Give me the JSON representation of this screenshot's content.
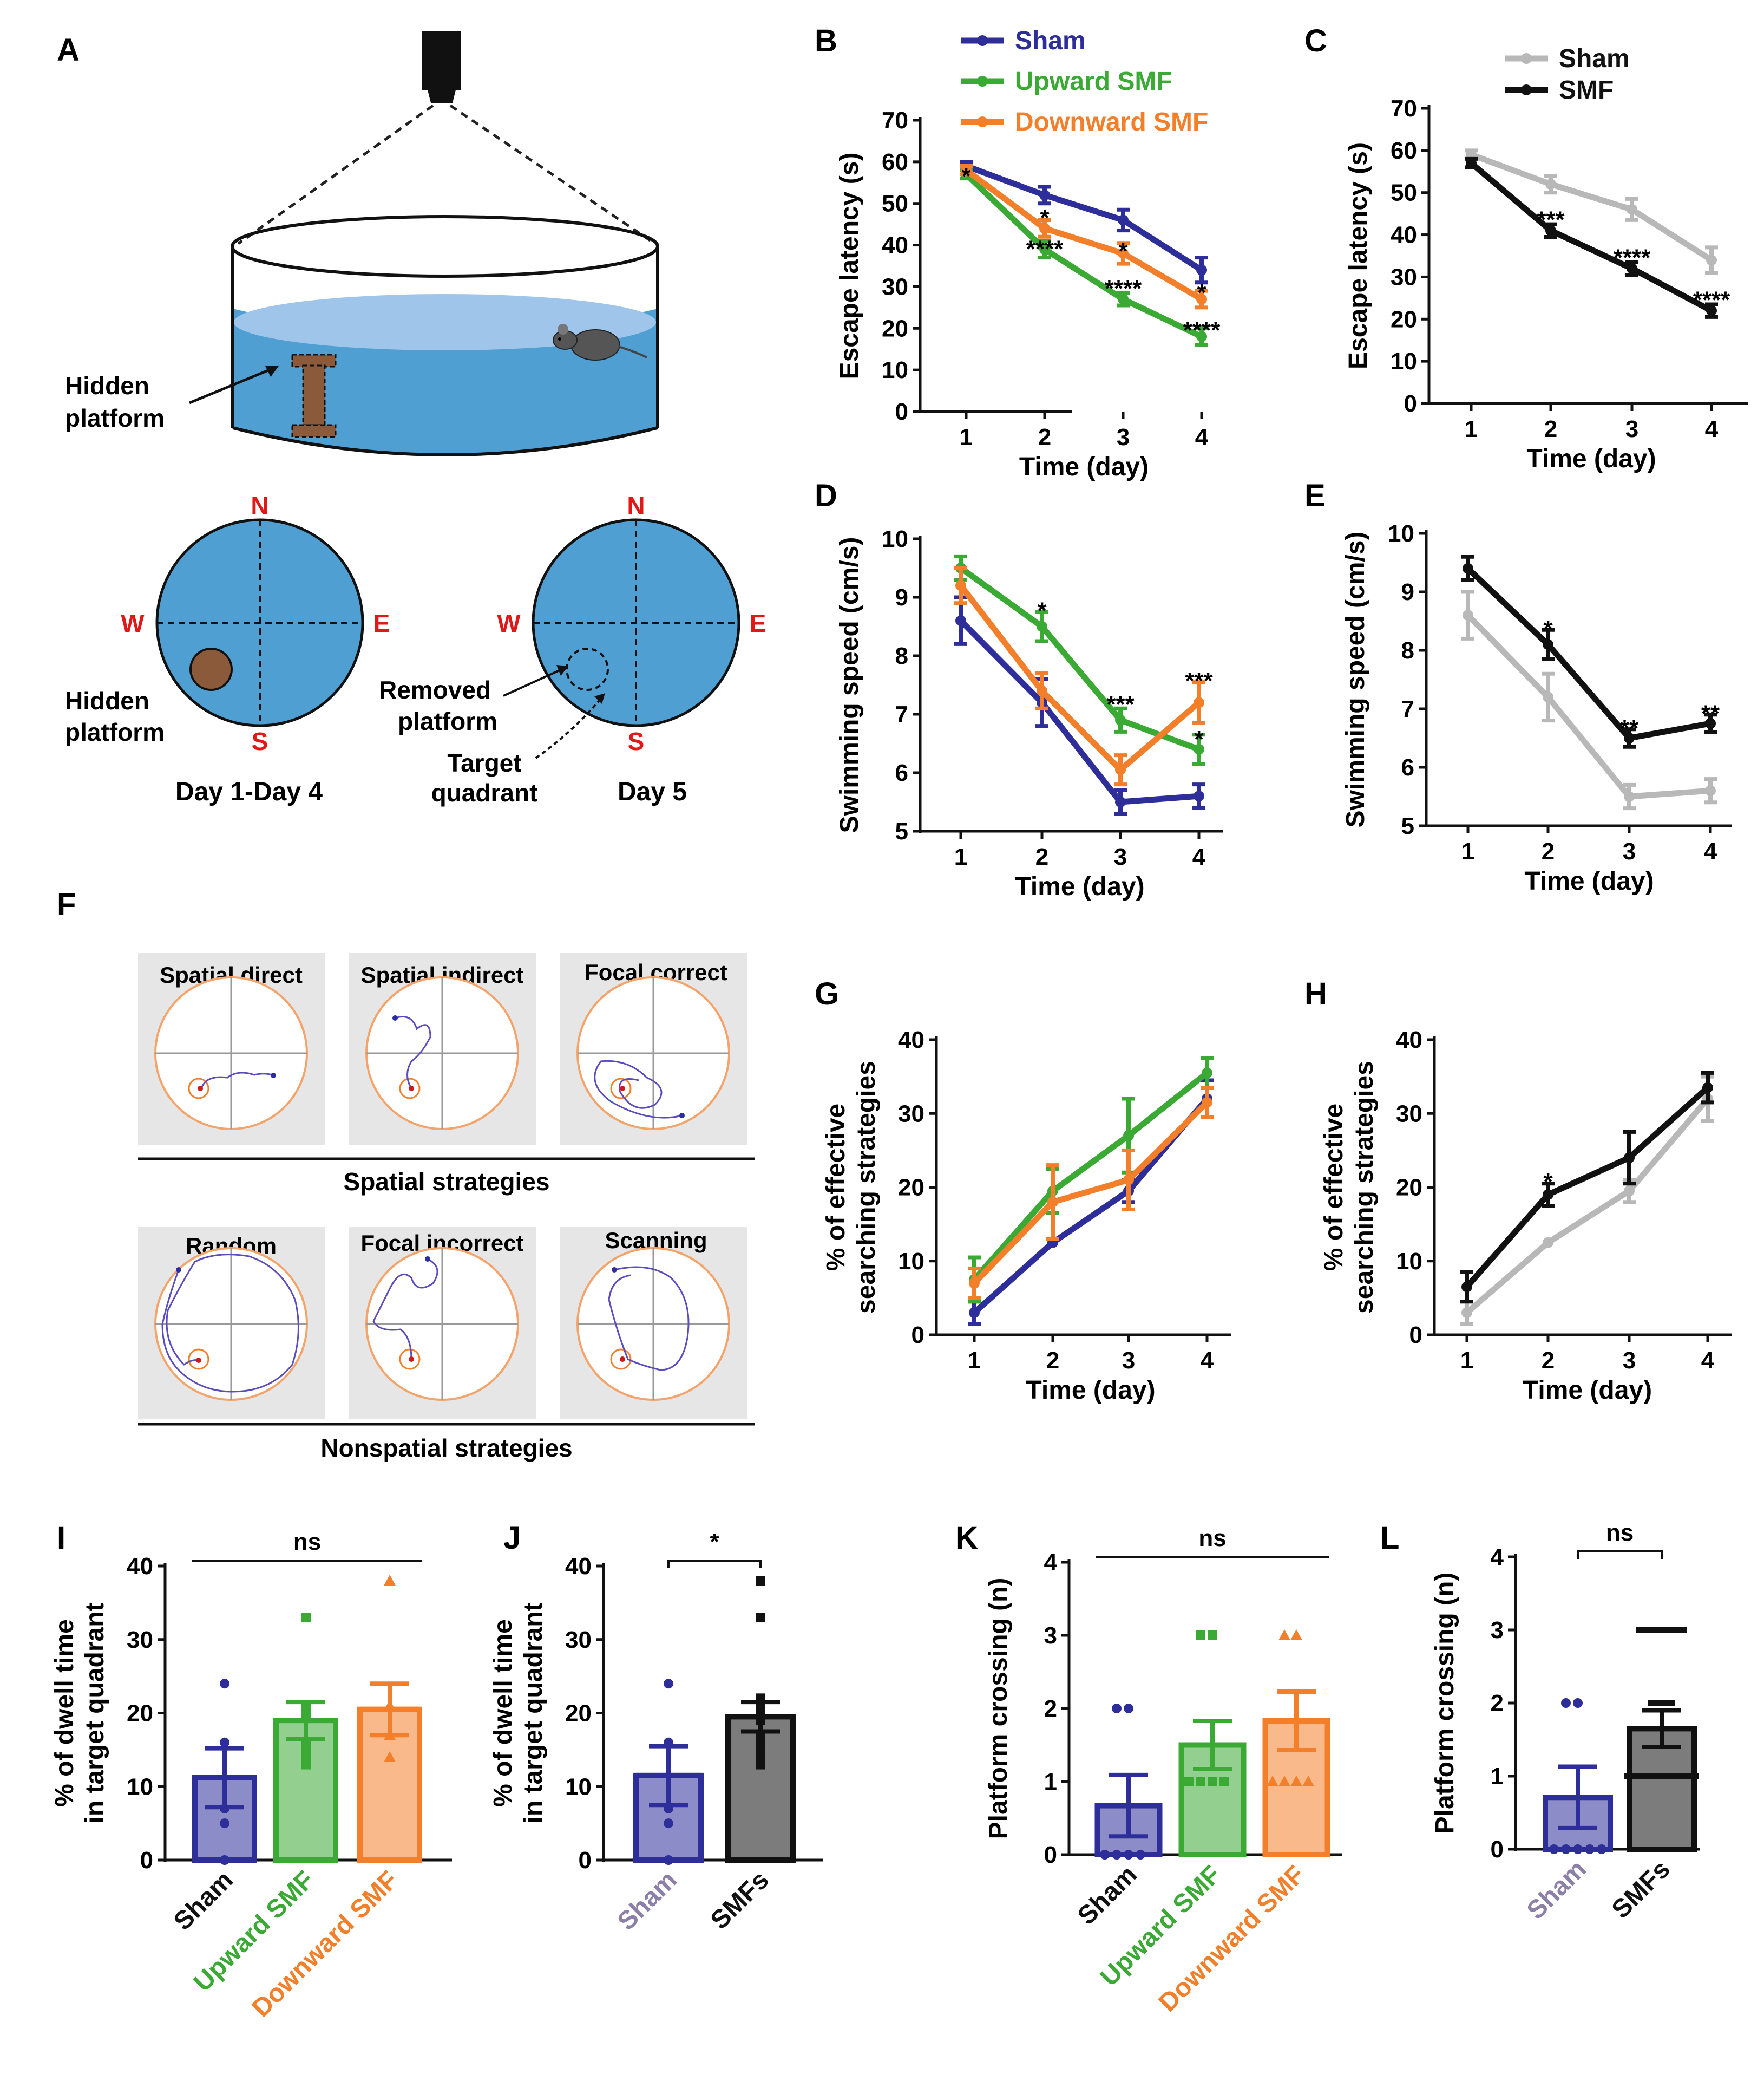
{
  "colors": {
    "sham": "#2e2e9a",
    "up": "#3aaa35",
    "down": "#f47f2a",
    "smf": "#111111",
    "shamGray": "#b8b8b8",
    "water": "#5ea7d4",
    "compass": "#e01818"
  },
  "panelA": {
    "label": "A",
    "hidden_platform_line1": "Hidden",
    "hidden_platform_line2": "platform",
    "compass": {
      "n": "N",
      "s": "S",
      "w": "W",
      "e": "E"
    },
    "left_platform_line1": "Hidden",
    "left_platform_line2": "platform",
    "removed_line1": "Removed",
    "removed_line2": "platform",
    "target_line1": "Target",
    "target_line2": "quadrant",
    "caption_left": "Day 1-Day 4",
    "caption_right": "Day 5"
  },
  "panelF": {
    "label": "F",
    "spatial_titles": [
      "Spatial direct",
      "Spatial indirect",
      "Focal correct"
    ],
    "spatial_group": "Spatial strategies",
    "nonspatial_titles": [
      "Random",
      "Focal incorrect",
      "Scanning"
    ],
    "nonspatial_group": "Nonspatial strategies"
  },
  "chart_data": [
    {
      "id": "B",
      "type": "line",
      "xlabel": "Time (day)",
      "ylabel": "Escape latency (s)",
      "x": [
        1,
        2,
        3,
        4
      ],
      "ylim": [
        0,
        70
      ],
      "yticks": [
        0,
        10,
        20,
        30,
        40,
        50,
        60,
        70
      ],
      "legend": [
        "Sham",
        "Upward SMF",
        "Downward SMF"
      ],
      "series": [
        {
          "name": "Sham",
          "color": "sham",
          "values": [
            59,
            52,
            46,
            34
          ],
          "errors": [
            1,
            2,
            2.5,
            3
          ]
        },
        {
          "name": "Upward SMF",
          "color": "up",
          "values": [
            57,
            39,
            27,
            18
          ],
          "errors": [
            1,
            2,
            1.5,
            2
          ]
        },
        {
          "name": "Downward SMF",
          "color": "down",
          "values": [
            58,
            44,
            38,
            27
          ],
          "errors": [
            1,
            2,
            2.5,
            2
          ]
        }
      ],
      "annotations": [
        {
          "x": 1,
          "y": 57,
          "text": "*"
        },
        {
          "x": 2,
          "y": 47,
          "text": "*"
        },
        {
          "x": 2,
          "y": 39.5,
          "text": "****"
        },
        {
          "x": 3,
          "y": 39,
          "text": "*"
        },
        {
          "x": 3,
          "y": 30,
          "text": "****"
        },
        {
          "x": 4,
          "y": 29,
          "text": "*"
        },
        {
          "x": 4,
          "y": 20,
          "text": "****"
        }
      ]
    },
    {
      "id": "C",
      "type": "line",
      "xlabel": "Time (day)",
      "ylabel": "Escape latency (s)",
      "x": [
        1,
        2,
        3,
        4
      ],
      "ylim": [
        0,
        70
      ],
      "yticks": [
        0,
        10,
        20,
        30,
        40,
        50,
        60,
        70
      ],
      "legend": [
        "Sham",
        "SMF"
      ],
      "series": [
        {
          "name": "Sham",
          "color": "shamGray",
          "values": [
            59,
            52,
            46,
            34
          ],
          "errors": [
            1,
            2,
            2.5,
            3
          ]
        },
        {
          "name": "SMF",
          "color": "smf",
          "values": [
            57,
            41,
            32,
            22
          ],
          "errors": [
            1,
            1.5,
            1.5,
            1.5
          ]
        }
      ],
      "annotations": [
        {
          "x": 2,
          "y": 44,
          "text": "***"
        },
        {
          "x": 3,
          "y": 35,
          "text": "****"
        },
        {
          "x": 4,
          "y": 25,
          "text": "****"
        }
      ]
    },
    {
      "id": "D",
      "type": "line",
      "xlabel": "Time (day)",
      "ylabel": "Swimming speed (cm/s)",
      "x": [
        1,
        2,
        3,
        4
      ],
      "ylim": [
        5,
        10
      ],
      "yticks": [
        5,
        6,
        7,
        8,
        9,
        10
      ],
      "series": [
        {
          "name": "Sham",
          "color": "sham",
          "values": [
            8.6,
            7.2,
            5.5,
            5.6
          ],
          "errors": [
            0.4,
            0.4,
            0.2,
            0.2
          ]
        },
        {
          "name": "Upward SMF",
          "color": "up",
          "values": [
            9.5,
            8.5,
            6.9,
            6.4
          ],
          "errors": [
            0.2,
            0.25,
            0.2,
            0.25
          ]
        },
        {
          "name": "Downward SMF",
          "color": "down",
          "values": [
            9.2,
            7.4,
            6.05,
            7.2
          ],
          "errors": [
            0.3,
            0.3,
            0.25,
            0.35
          ]
        }
      ],
      "annotations": [
        {
          "x": 2,
          "y": 8.8,
          "text": "*"
        },
        {
          "x": 3,
          "y": 7.2,
          "text": "***"
        },
        {
          "x": 4,
          "y": 7.6,
          "text": "***"
        },
        {
          "x": 4,
          "y": 6.6,
          "text": "*"
        }
      ]
    },
    {
      "id": "E",
      "type": "line",
      "xlabel": "Time (day)",
      "ylabel": "Swimming speed (cm/s)",
      "x": [
        1,
        2,
        3,
        4
      ],
      "ylim": [
        5,
        10
      ],
      "yticks": [
        5,
        6,
        7,
        8,
        9,
        10
      ],
      "series": [
        {
          "name": "Sham",
          "color": "shamGray",
          "values": [
            8.6,
            7.2,
            5.5,
            5.6
          ],
          "errors": [
            0.4,
            0.4,
            0.2,
            0.2
          ]
        },
        {
          "name": "SMF",
          "color": "smf",
          "values": [
            9.4,
            8.1,
            6.5,
            6.75
          ],
          "errors": [
            0.2,
            0.25,
            0.15,
            0.15
          ]
        }
      ],
      "annotations": [
        {
          "x": 2,
          "y": 8.4,
          "text": "*"
        },
        {
          "x": 3,
          "y": 6.7,
          "text": "**"
        },
        {
          "x": 4,
          "y": 6.95,
          "text": "**"
        }
      ]
    },
    {
      "id": "G",
      "type": "line",
      "xlabel": "Time (day)",
      "ylabel": [
        "% of effective",
        "searching strategies"
      ],
      "x": [
        1,
        2,
        3,
        4
      ],
      "ylim": [
        0,
        40
      ],
      "yticks": [
        0,
        10,
        20,
        30,
        40
      ],
      "series": [
        {
          "name": "Sham",
          "color": "sham",
          "values": [
            3,
            12.5,
            19.5,
            32
          ],
          "errors": [
            1.5,
            0,
            1.5,
            2.5
          ]
        },
        {
          "name": "Upward SMF",
          "color": "up",
          "values": [
            7.5,
            19.5,
            27,
            35.5
          ],
          "errors": [
            3,
            3,
            5,
            2
          ]
        },
        {
          "name": "Downward SMF",
          "color": "down",
          "values": [
            7,
            18,
            21,
            31.5
          ],
          "errors": [
            2,
            5,
            4,
            2
          ]
        }
      ],
      "annotations": []
    },
    {
      "id": "H",
      "type": "line",
      "xlabel": "Time (day)",
      "ylabel": [
        "% of effective",
        "searching strategies"
      ],
      "x": [
        1,
        2,
        3,
        4
      ],
      "ylim": [
        0,
        40
      ],
      "yticks": [
        0,
        10,
        20,
        30,
        40
      ],
      "series": [
        {
          "name": "Sham",
          "color": "shamGray",
          "values": [
            3,
            12.5,
            19.5,
            32
          ],
          "errors": [
            1.5,
            0,
            1.5,
            3
          ]
        },
        {
          "name": "SMF",
          "color": "smf",
          "values": [
            6.5,
            19,
            24,
            33.5
          ],
          "errors": [
            2,
            1.5,
            3.5,
            2
          ]
        }
      ],
      "annotations": [
        {
          "x": 2,
          "y": 21,
          "text": "*"
        }
      ]
    },
    {
      "id": "I",
      "type": "bar",
      "ylabel": [
        "% of dwell time",
        "in target quadrant"
      ],
      "ylim": [
        0,
        40
      ],
      "yticks": [
        0,
        10,
        20,
        30,
        40
      ],
      "categories": [
        "Sham",
        "Upward SMF",
        "Downward SMF"
      ],
      "colors": [
        "sham",
        "up",
        "down"
      ],
      "values": [
        11.2,
        19,
        20.5
      ],
      "errors": [
        4,
        2.5,
        3.5
      ],
      "points": [
        [
          24,
          16,
          7,
          5,
          0
        ],
        [
          33,
          21,
          20,
          16,
          15,
          14,
          13
        ],
        [
          38,
          21,
          17,
          14
        ]
      ],
      "marker": [
        "circle",
        "square",
        "triangle"
      ],
      "significance": {
        "text": "ns",
        "from": 0,
        "to": 2
      }
    },
    {
      "id": "J",
      "type": "bar",
      "ylabel": [
        "% of dwell time",
        "in target quadrant"
      ],
      "ylim": [
        0,
        40
      ],
      "yticks": [
        0,
        10,
        20,
        30,
        40
      ],
      "categories": [
        "Sham",
        "SMFs"
      ],
      "colors": [
        "sham",
        "smf"
      ],
      "label_colors": [
        "#8c7fa8",
        "#111111"
      ],
      "values": [
        11.5,
        19.5
      ],
      "errors": [
        4,
        2
      ],
      "points": [
        [
          24,
          16,
          7,
          5,
          0
        ],
        [
          38,
          33,
          22,
          21,
          20,
          19,
          17,
          16,
          15,
          14,
          13
        ]
      ],
      "marker": [
        "circle",
        "square"
      ],
      "significance": {
        "text": "*",
        "from": 0,
        "to": 1
      }
    },
    {
      "id": "K",
      "type": "bar",
      "ylabel": "Platform crossing (n)",
      "ylim": [
        0,
        4
      ],
      "yticks": [
        0,
        1,
        2,
        3,
        4
      ],
      "categories": [
        "Sham",
        "Upward SMF",
        "Downward SMF"
      ],
      "colors": [
        "sham",
        "up",
        "down"
      ],
      "values": [
        0.67,
        1.5,
        1.83
      ],
      "errors": [
        0.42,
        0.33,
        0.4
      ],
      "points": [
        [
          2,
          2,
          0,
          0,
          0,
          0
        ],
        [
          3,
          3,
          1,
          1,
          1,
          1
        ],
        [
          3,
          3,
          1,
          1,
          1,
          1
        ]
      ],
      "marker": [
        "circle",
        "square",
        "triangle"
      ],
      "significance": {
        "text": "ns",
        "from": 0,
        "to": 2
      }
    },
    {
      "id": "L",
      "type": "bar",
      "ylabel": "Platform crossing (n)",
      "ylim": [
        0,
        4
      ],
      "yticks": [
        0,
        1,
        2,
        3,
        4
      ],
      "categories": [
        "Sham",
        "SMFs"
      ],
      "colors": [
        "sham",
        "smf"
      ],
      "label_colors": [
        "#8c7fa8",
        "#111111"
      ],
      "values": [
        0.71,
        1.65
      ],
      "errors": [
        0.42,
        0.25
      ],
      "points": [
        [
          2,
          2,
          0,
          0,
          0,
          0,
          0
        ],
        [
          3,
          3,
          3,
          2,
          1,
          1,
          1,
          1,
          1
        ]
      ],
      "marker": [
        "circle",
        "dash"
      ],
      "significance": {
        "text": "ns",
        "from": 0,
        "to": 1
      }
    }
  ]
}
